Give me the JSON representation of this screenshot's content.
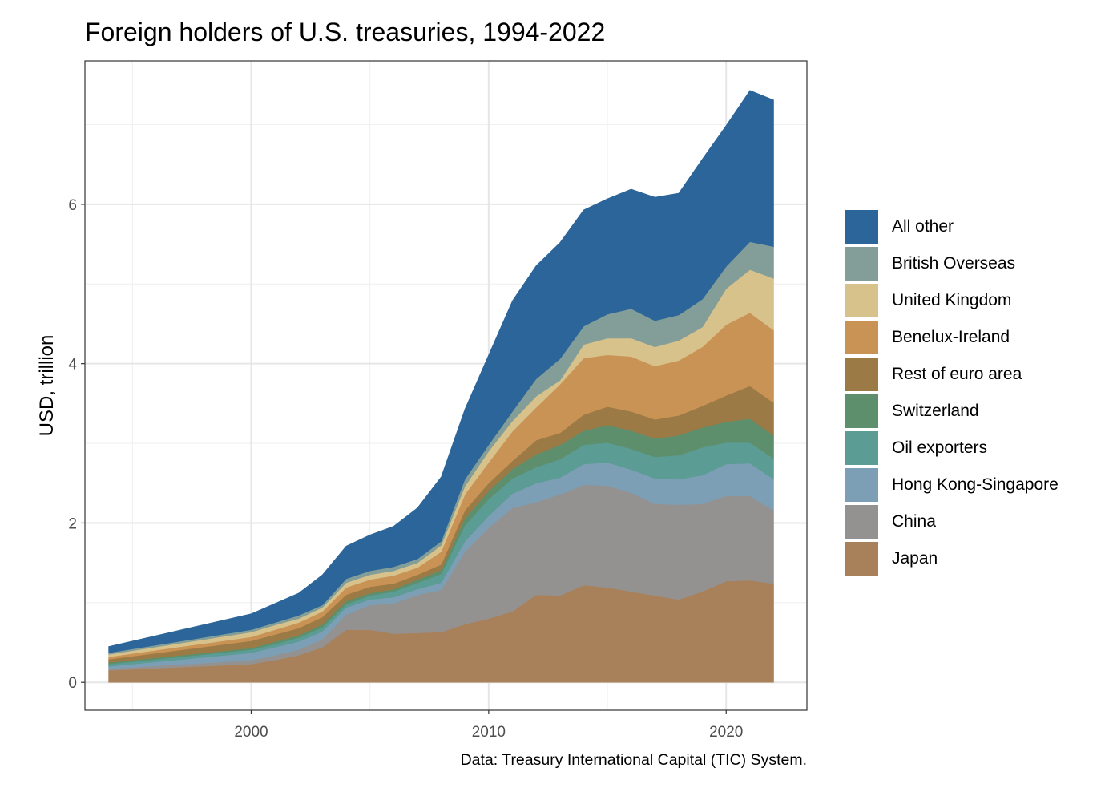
{
  "chart_data": {
    "type": "area",
    "stacked": true,
    "title": "Foreign holders of U.S. treasuries, 1994-2022",
    "xlabel": "",
    "ylabel": "USD, trillion",
    "caption": "Data: Treasury International Capital (TIC) System.",
    "xlim": [
      1993,
      2023.4
    ],
    "ylim": [
      -0.35,
      7.8
    ],
    "x_ticks": [
      2000,
      2010,
      2020
    ],
    "x_tick_labels": [
      "2000",
      "2010",
      "2020"
    ],
    "y_ticks": [
      0,
      2,
      4,
      6
    ],
    "y_tick_labels": [
      "0",
      "2",
      "4",
      "6"
    ],
    "grid": true,
    "legend_position": "right",
    "x": [
      1994,
      2000,
      2001,
      2002,
      2003,
      2004,
      2005,
      2006,
      2007,
      2008,
      2009,
      2010,
      2011,
      2012,
      2013,
      2014,
      2015,
      2016,
      2017,
      2018,
      2019,
      2020,
      2021,
      2022
    ],
    "series": [
      {
        "name": "Japan",
        "color": "#A8805A",
        "values": [
          0.15,
          0.23,
          0.28,
          0.34,
          0.44,
          0.66,
          0.66,
          0.61,
          0.62,
          0.63,
          0.73,
          0.8,
          0.89,
          1.1,
          1.09,
          1.22,
          1.19,
          1.14,
          1.09,
          1.04,
          1.14,
          1.27,
          1.28,
          1.24
        ]
      },
      {
        "name": "China",
        "color": "#949290",
        "values": [
          0.02,
          0.05,
          0.06,
          0.07,
          0.1,
          0.19,
          0.31,
          0.38,
          0.48,
          0.53,
          0.91,
          1.14,
          1.3,
          1.16,
          1.27,
          1.26,
          1.28,
          1.24,
          1.15,
          1.19,
          1.1,
          1.07,
          1.06,
          0.92
        ]
      },
      {
        "name": "Hong Kong-Singapore",
        "color": "#7C9FB6",
        "values": [
          0.03,
          0.09,
          0.1,
          0.1,
          0.1,
          0.09,
          0.07,
          0.08,
          0.07,
          0.09,
          0.13,
          0.15,
          0.18,
          0.24,
          0.21,
          0.26,
          0.29,
          0.29,
          0.32,
          0.32,
          0.36,
          0.4,
          0.41,
          0.39
        ]
      },
      {
        "name": "Oil exporters",
        "color": "#5B9C95",
        "values": [
          0.03,
          0.04,
          0.04,
          0.05,
          0.05,
          0.04,
          0.05,
          0.07,
          0.08,
          0.11,
          0.2,
          0.21,
          0.19,
          0.2,
          0.23,
          0.24,
          0.25,
          0.26,
          0.27,
          0.3,
          0.35,
          0.27,
          0.26,
          0.26
        ]
      },
      {
        "name": "Switzerland",
        "color": "#5E8F6C",
        "values": [
          0.02,
          0.02,
          0.03,
          0.03,
          0.04,
          0.04,
          0.03,
          0.03,
          0.04,
          0.05,
          0.09,
          0.1,
          0.12,
          0.16,
          0.18,
          0.18,
          0.22,
          0.23,
          0.23,
          0.25,
          0.25,
          0.26,
          0.3,
          0.29
        ]
      },
      {
        "name": "Rest of euro area",
        "color": "#9C7A45",
        "values": [
          0.04,
          0.09,
          0.09,
          0.09,
          0.09,
          0.08,
          0.08,
          0.07,
          0.06,
          0.07,
          0.1,
          0.1,
          0.1,
          0.18,
          0.15,
          0.2,
          0.23,
          0.24,
          0.24,
          0.25,
          0.27,
          0.33,
          0.41,
          0.41
        ]
      },
      {
        "name": "Benelux-Ireland",
        "color": "#C99355",
        "values": [
          0.03,
          0.05,
          0.06,
          0.07,
          0.07,
          0.09,
          0.09,
          0.1,
          0.09,
          0.16,
          0.2,
          0.26,
          0.37,
          0.41,
          0.61,
          0.71,
          0.65,
          0.69,
          0.67,
          0.69,
          0.74,
          0.89,
          0.92,
          0.91
        ]
      },
      {
        "name": "United Kingdom",
        "color": "#D8C28C",
        "values": [
          0.03,
          0.06,
          0.06,
          0.05,
          0.05,
          0.06,
          0.06,
          0.06,
          0.06,
          0.08,
          0.1,
          0.14,
          0.13,
          0.14,
          0.05,
          0.17,
          0.21,
          0.23,
          0.24,
          0.25,
          0.25,
          0.45,
          0.54,
          0.65
        ]
      },
      {
        "name": "British Overseas",
        "color": "#839E98",
        "values": [
          0.02,
          0.03,
          0.03,
          0.04,
          0.03,
          0.05,
          0.05,
          0.05,
          0.05,
          0.05,
          0.09,
          0.08,
          0.12,
          0.22,
          0.27,
          0.23,
          0.3,
          0.37,
          0.33,
          0.32,
          0.35,
          0.28,
          0.35,
          0.4
        ]
      },
      {
        "name": "All other",
        "color": "#2B6599",
        "values": [
          0.08,
          0.2,
          0.24,
          0.28,
          0.38,
          0.41,
          0.45,
          0.51,
          0.64,
          0.81,
          0.88,
          1.13,
          1.39,
          1.42,
          1.46,
          1.46,
          1.45,
          1.5,
          1.55,
          1.53,
          1.76,
          1.77,
          1.9,
          1.84
        ]
      }
    ]
  },
  "legend": {
    "items": [
      {
        "label": "All other",
        "color": "#2B6599"
      },
      {
        "label": "British Overseas",
        "color": "#839E98"
      },
      {
        "label": "United Kingdom",
        "color": "#D8C28C"
      },
      {
        "label": "Benelux-Ireland",
        "color": "#C99355"
      },
      {
        "label": "Rest of euro area",
        "color": "#9C7A45"
      },
      {
        "label": "Switzerland",
        "color": "#5E8F6C"
      },
      {
        "label": "Oil exporters",
        "color": "#5B9C95"
      },
      {
        "label": "Hong Kong-Singapore",
        "color": "#7C9FB6"
      },
      {
        "label": "China",
        "color": "#949290"
      },
      {
        "label": "Japan",
        "color": "#A8805A"
      }
    ]
  }
}
